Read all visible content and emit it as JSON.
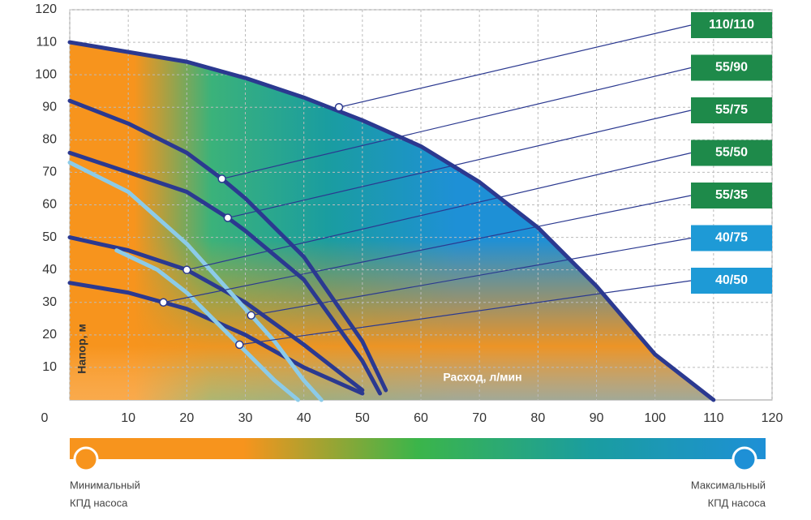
{
  "chart_data": {
    "type": "line",
    "xlabel": "Расход, л/мин",
    "ylabel": "Напор, м",
    "xlim": [
      0,
      120
    ],
    "ylim": [
      0,
      120
    ],
    "xticks": [
      0,
      10,
      20,
      30,
      40,
      50,
      60,
      70,
      80,
      90,
      100,
      110,
      120
    ],
    "yticks": [
      10,
      20,
      30,
      40,
      50,
      60,
      70,
      80,
      90,
      100,
      110,
      120
    ],
    "grid": true,
    "series": [
      {
        "name": "110/110",
        "color": "#1e8a4a",
        "line_color": "#2b3990",
        "x": [
          0,
          10,
          20,
          30,
          40,
          50,
          60,
          70,
          80,
          90,
          100,
          110
        ],
        "values": [
          110,
          107,
          104,
          99,
          93,
          86,
          78,
          67,
          53,
          35,
          14,
          0
        ],
        "marker_x": 46,
        "marker_y": 90
      },
      {
        "name": "55/90",
        "color": "#1e8a4a",
        "line_color": "#2b3990",
        "x": [
          0,
          10,
          20,
          26,
          30,
          40,
          50,
          54
        ],
        "values": [
          92,
          85,
          76,
          68,
          62,
          44,
          18,
          3
        ],
        "marker_x": 26,
        "marker_y": 68
      },
      {
        "name": "55/75",
        "color": "#1e8a4a",
        "line_color": "#2b3990",
        "x": [
          0,
          10,
          20,
          27,
          30,
          40,
          50,
          53
        ],
        "values": [
          76,
          70,
          64,
          56,
          52,
          37,
          12,
          2
        ],
        "marker_x": 27,
        "marker_y": 56
      },
      {
        "name": "55/50",
        "color": "#1e8a4a",
        "line_color": "#2b3990",
        "x": [
          0,
          10,
          20,
          30,
          40,
          50
        ],
        "values": [
          50,
          46,
          40,
          30,
          17,
          3
        ],
        "marker_x": 20,
        "marker_y": 40
      },
      {
        "name": "55/35",
        "color": "#1e8a4a",
        "line_color": "#2b3990",
        "x": [
          0,
          10,
          16,
          20,
          30,
          40,
          50
        ],
        "values": [
          36,
          33,
          30,
          28,
          20,
          10,
          2
        ],
        "marker_x": 16,
        "marker_y": 30
      },
      {
        "name": "40/75",
        "color": "#1e9ad6",
        "line_color": "#8ccbe8",
        "x": [
          0,
          10,
          20,
          30,
          35,
          40,
          43
        ],
        "values": [
          73,
          64,
          48,
          28,
          18,
          6,
          0
        ],
        "marker_x": 31,
        "marker_y": 26
      },
      {
        "name": "40/50",
        "color": "#1e9ad6",
        "line_color": "#8ccbe8",
        "x": [
          8,
          15,
          20,
          30,
          35,
          39
        ],
        "values": [
          46,
          40,
          33,
          15,
          6,
          0
        ],
        "marker_x": 29,
        "marker_y": 17
      }
    ],
    "efficiency_legend": {
      "min_label": [
        "Минимальный",
        "КПД насоса"
      ],
      "max_label": [
        "Максимальный",
        "КПД насоса"
      ]
    }
  }
}
